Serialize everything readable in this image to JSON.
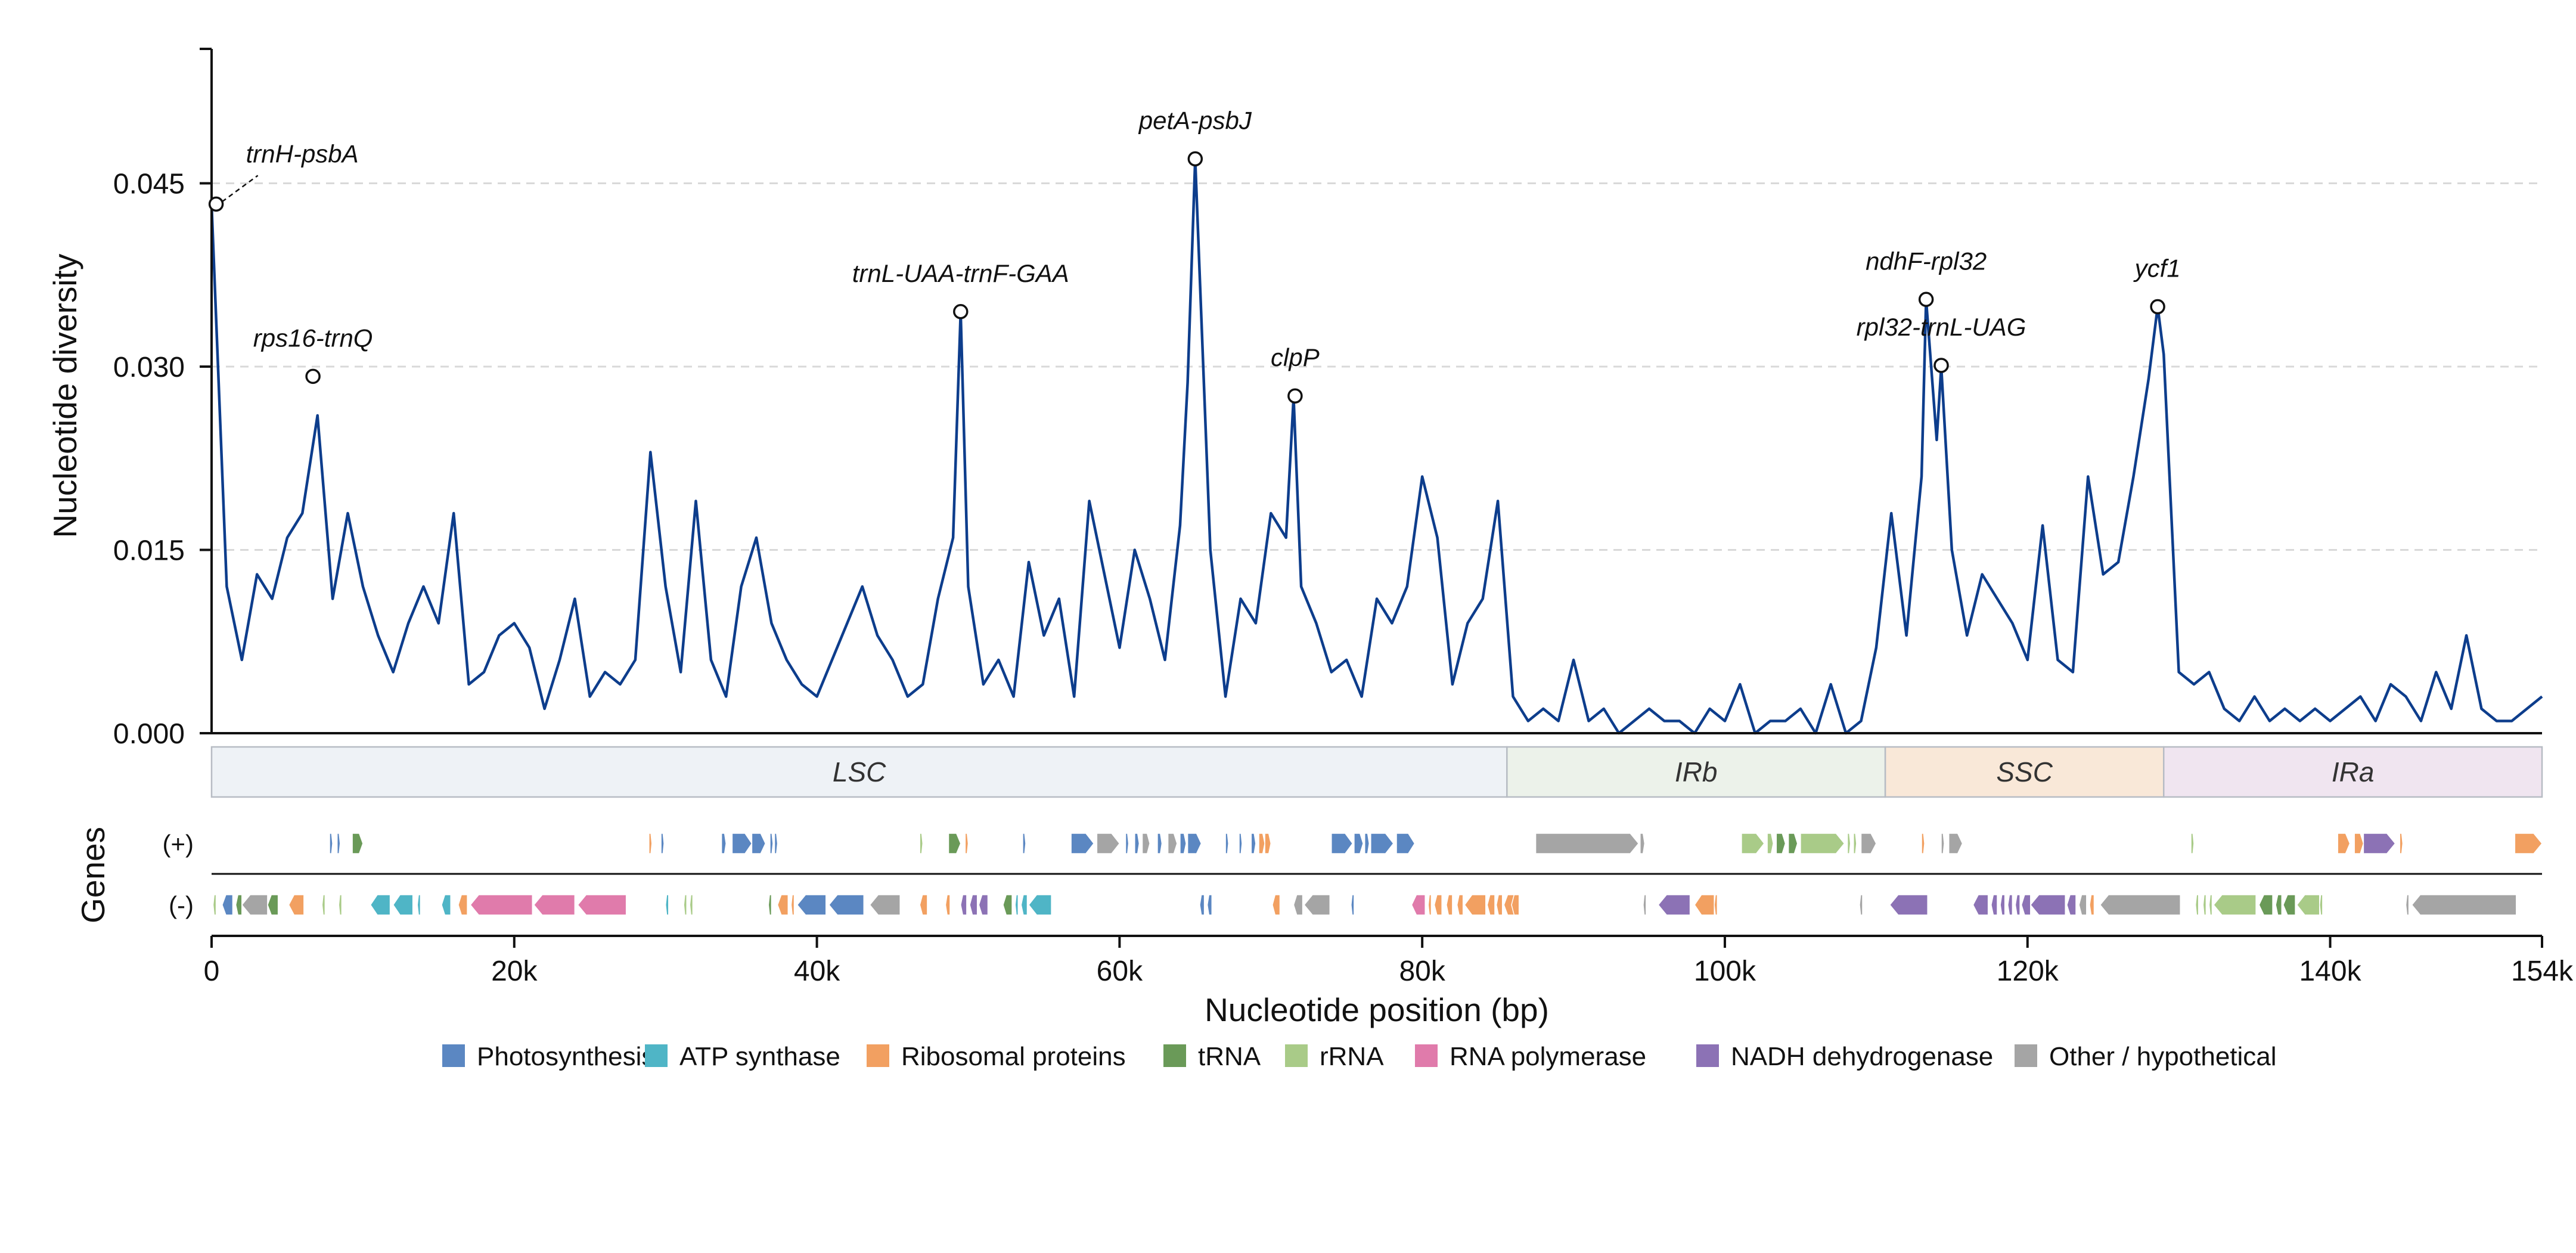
{
  "chart_data": {
    "type": "line",
    "xlabel": "Nucleotide position (bp)",
    "ylabel": "Nucleotide diversity",
    "xlim": [
      0,
      154000
    ],
    "ylim": [
      0,
      0.056
    ],
    "x_ticks": [
      0,
      20000,
      40000,
      60000,
      80000,
      100000,
      120000,
      140000,
      154000
    ],
    "x_tick_labels": [
      "0",
      "20k",
      "40k",
      "60k",
      "80k",
      "100k",
      "120k",
      "140k",
      "154k"
    ],
    "y_ticks": [
      0.0,
      0.015,
      0.03,
      0.045
    ],
    "y_tick_labels": [
      "0.000",
      "0.015",
      "0.030",
      "0.045"
    ],
    "grid": "horizontal dashed",
    "line_color": "#0d3d8c",
    "series": [
      {
        "x": [
          0,
          1000,
          2000,
          3000,
          4000,
          5000,
          6000,
          7000,
          8000,
          9000,
          10000,
          11000,
          12000,
          13000,
          14000,
          15000,
          16000,
          17000,
          18000,
          19000,
          20000,
          21000,
          22000,
          23000,
          24000,
          25000,
          26000,
          27000,
          28000,
          29000,
          30000,
          31000,
          32000,
          33000,
          34000,
          35000,
          36000,
          37000,
          38000,
          39000,
          40000,
          41000,
          42000,
          43000,
          44000,
          45000,
          46000,
          47000,
          48000,
          49000,
          49500,
          50000,
          51000,
          52000,
          53000,
          54000,
          55000,
          56000,
          57000,
          58000,
          59000,
          60000,
          61000,
          62000,
          63000,
          64000,
          64500,
          65000,
          66000,
          67000,
          68000,
          69000,
          70000,
          71000,
          71500,
          72000,
          73000,
          74000,
          75000,
          76000,
          77000,
          78000,
          79000,
          80000,
          81000,
          82000,
          83000,
          84000,
          85000,
          86000,
          87000,
          88000,
          89000,
          90000,
          91000,
          92000,
          93000,
          94000,
          95000,
          96000,
          97000,
          98000,
          99000,
          100000,
          101000,
          102000,
          103000,
          104000,
          105000,
          106000,
          107000,
          108000,
          109000,
          110000,
          111000,
          112000,
          113000,
          113300,
          114000,
          114300,
          115000,
          116000,
          117000,
          118000,
          119000,
          120000,
          121000,
          122000,
          123000,
          124000,
          125000,
          126000,
          127000,
          128000,
          128600,
          129000,
          130000,
          131000,
          132000,
          133000,
          134000,
          135000,
          136000,
          137000,
          138000,
          139000,
          140000,
          141000,
          142000,
          143000,
          144000,
          145000,
          146000,
          147000,
          148000,
          149000,
          150000,
          151000,
          152000,
          153000,
          154000
        ],
        "y": [
          0.0433,
          0.012,
          0.006,
          0.013,
          0.011,
          0.016,
          0.018,
          0.026,
          0.011,
          0.018,
          0.012,
          0.008,
          0.005,
          0.009,
          0.012,
          0.009,
          0.018,
          0.004,
          0.005,
          0.008,
          0.009,
          0.007,
          0.002,
          0.006,
          0.011,
          0.003,
          0.005,
          0.004,
          0.006,
          0.023,
          0.012,
          0.005,
          0.019,
          0.006,
          0.003,
          0.012,
          0.016,
          0.009,
          0.006,
          0.004,
          0.003,
          0.006,
          0.009,
          0.012,
          0.008,
          0.006,
          0.003,
          0.004,
          0.011,
          0.016,
          0.0345,
          0.012,
          0.004,
          0.006,
          0.003,
          0.014,
          0.008,
          0.011,
          0.003,
          0.019,
          0.013,
          0.007,
          0.015,
          0.011,
          0.006,
          0.017,
          0.0287,
          0.047,
          0.015,
          0.003,
          0.011,
          0.009,
          0.018,
          0.016,
          0.0275,
          0.012,
          0.009,
          0.005,
          0.006,
          0.003,
          0.011,
          0.009,
          0.012,
          0.021,
          0.016,
          0.004,
          0.009,
          0.011,
          0.019,
          0.003,
          0.001,
          0.002,
          0.001,
          0.006,
          0.001,
          0.002,
          0.0,
          0.001,
          0.002,
          0.001,
          0.001,
          0.0,
          0.002,
          0.001,
          0.004,
          0.0,
          0.001,
          0.001,
          0.002,
          0.0,
          0.004,
          0.0,
          0.001,
          0.007,
          0.018,
          0.008,
          0.021,
          0.0355,
          0.024,
          0.03,
          0.015,
          0.008,
          0.013,
          0.011,
          0.009,
          0.006,
          0.017,
          0.006,
          0.005,
          0.021,
          0.013,
          0.014,
          0.021,
          0.029,
          0.0349,
          0.031,
          0.005,
          0.004,
          0.005,
          0.002,
          0.001,
          0.003,
          0.001,
          0.002,
          0.001,
          0.002,
          0.001,
          0.002,
          0.003,
          0.001,
          0.004,
          0.003,
          0.001,
          0.005,
          0.002,
          0.008,
          0.002,
          0.001,
          0.001,
          0.002,
          0.003
        ]
      }
    ],
    "peaks": [
      {
        "label": "trnH-psbA",
        "x": 300,
        "y": 0.0433
      },
      {
        "label": "rps16-trnQ",
        "x": 6700,
        "y": 0.0292
      },
      {
        "label": "trnL-UAA-trnF-GAA",
        "x": 49500,
        "y": 0.0345
      },
      {
        "label": "petA-psbJ",
        "x": 65000,
        "y": 0.047
      },
      {
        "label": "clpP",
        "x": 71600,
        "y": 0.0276
      },
      {
        "label": "ndhF-rpl32",
        "x": 113300,
        "y": 0.0355
      },
      {
        "label": "rpl32-trnL-UAG",
        "x": 114300,
        "y": 0.0301
      },
      {
        "label": "ycf1",
        "x": 128600,
        "y": 0.0349
      }
    ],
    "regions": [
      {
        "label": "LSC",
        "start": 0,
        "end": 85600,
        "color": "#eef2f6"
      },
      {
        "label": "IRb",
        "start": 85600,
        "end": 110600,
        "color": "#ecf2ea"
      },
      {
        "label": "SSC",
        "start": 110600,
        "end": 129000,
        "color": "#f9e8d8"
      },
      {
        "label": "IRa",
        "start": 129000,
        "end": 154000,
        "color": "#f0e5f0"
      }
    ],
    "genes_track_label": "Genes",
    "strand_labels": [
      "(+)",
      "(-)"
    ],
    "categories": [
      {
        "name": "Photosynthesis",
        "color": "#5b87c2"
      },
      {
        "name": "ATP synthase",
        "color": "#4fb5c6"
      },
      {
        "name": "Ribosomal proteins",
        "color": "#f2a061"
      },
      {
        "name": "tRNA",
        "color": "#6a9a58"
      },
      {
        "name": "rRNA",
        "color": "#a9cb88"
      },
      {
        "name": "RNA polymerase",
        "color": "#e07bab"
      },
      {
        "name": "NADH dehydrogenase",
        "color": "#8c72b5"
      },
      {
        "name": "Other / hypothetical",
        "color": "#a5a5a5"
      }
    ],
    "genes_plus": [
      [
        7800,
        8000,
        0
      ],
      [
        8300,
        8500,
        0
      ],
      [
        9300,
        10000,
        3
      ],
      [
        28900,
        29100,
        2
      ],
      [
        29700,
        29900,
        0
      ],
      [
        33700,
        34000,
        0
      ],
      [
        34400,
        35700,
        0
      ],
      [
        35700,
        36600,
        0
      ],
      [
        36900,
        37100,
        0
      ],
      [
        37200,
        37400,
        0
      ],
      [
        46800,
        47000,
        4
      ],
      [
        48700,
        49500,
        3
      ],
      [
        49800,
        50000,
        2
      ],
      [
        53600,
        53800,
        0
      ],
      [
        56800,
        58300,
        0
      ],
      [
        58500,
        60000,
        7
      ],
      [
        60400,
        60600,
        0
      ],
      [
        61000,
        61300,
        0
      ],
      [
        61500,
        62000,
        7
      ],
      [
        62500,
        62800,
        0
      ],
      [
        63200,
        63800,
        7
      ],
      [
        64000,
        64400,
        0
      ],
      [
        64500,
        65400,
        0
      ],
      [
        67000,
        67200,
        0
      ],
      [
        67900,
        68100,
        0
      ],
      [
        68700,
        69000,
        0
      ],
      [
        69200,
        69600,
        2
      ],
      [
        69600,
        70000,
        2
      ],
      [
        74000,
        75400,
        0
      ],
      [
        75500,
        76100,
        0
      ],
      [
        76200,
        76500,
        0
      ],
      [
        76600,
        78100,
        0
      ],
      [
        78300,
        79500,
        0
      ],
      [
        87500,
        94300,
        7
      ],
      [
        94400,
        94700,
        7
      ],
      [
        101100,
        102600,
        4
      ],
      [
        102800,
        103200,
        4
      ],
      [
        103400,
        104000,
        3
      ],
      [
        104200,
        104800,
        3
      ],
      [
        105000,
        107900,
        4
      ],
      [
        108100,
        108300,
        4
      ],
      [
        108500,
        108700,
        4
      ],
      [
        109000,
        110000,
        7
      ],
      [
        113000,
        113200,
        2
      ],
      [
        114300,
        114500,
        7
      ],
      [
        114800,
        115700,
        7
      ],
      [
        130800,
        131000,
        4
      ],
      [
        140500,
        141300,
        2
      ],
      [
        141600,
        142200,
        2
      ],
      [
        142200,
        144300,
        6
      ],
      [
        144600,
        144800,
        2
      ],
      [
        152200,
        154000,
        2
      ]
    ],
    "genes_minus": [
      [
        100,
        300,
        4
      ],
      [
        700,
        1400,
        0
      ],
      [
        1600,
        2000,
        3
      ],
      [
        2000,
        3700,
        7
      ],
      [
        3700,
        4400,
        3
      ],
      [
        5100,
        6100,
        2
      ],
      [
        7300,
        7500,
        4
      ],
      [
        8400,
        8600,
        4
      ],
      [
        10500,
        11800,
        1
      ],
      [
        12000,
        13300,
        1
      ],
      [
        13600,
        13800,
        1
      ],
      [
        15200,
        15800,
        1
      ],
      [
        16300,
        16900,
        2
      ],
      [
        17100,
        21200,
        5
      ],
      [
        21300,
        24000,
        5
      ],
      [
        24200,
        27400,
        5
      ],
      [
        30000,
        30200,
        1
      ],
      [
        31200,
        31400,
        4
      ],
      [
        31600,
        31800,
        4
      ],
      [
        36800,
        37000,
        3
      ],
      [
        37400,
        38100,
        2
      ],
      [
        38300,
        38500,
        2
      ],
      [
        38700,
        40600,
        0
      ],
      [
        40800,
        43100,
        0
      ],
      [
        43500,
        45500,
        7
      ],
      [
        46800,
        47300,
        2
      ],
      [
        48500,
        48800,
        2
      ],
      [
        49500,
        49900,
        6
      ],
      [
        50100,
        50600,
        6
      ],
      [
        50700,
        51300,
        6
      ],
      [
        52300,
        52900,
        3
      ],
      [
        53100,
        53300,
        1
      ],
      [
        53500,
        53900,
        1
      ],
      [
        54000,
        55500,
        1
      ],
      [
        65300,
        65600,
        0
      ],
      [
        65800,
        66100,
        0
      ],
      [
        70100,
        70600,
        2
      ],
      [
        71500,
        72100,
        7
      ],
      [
        72200,
        73900,
        7
      ],
      [
        75300,
        75500,
        0
      ],
      [
        79300,
        80200,
        5
      ],
      [
        80400,
        80600,
        2
      ],
      [
        80800,
        81300,
        2
      ],
      [
        81600,
        82000,
        2
      ],
      [
        82300,
        82700,
        2
      ],
      [
        82800,
        84200,
        2
      ],
      [
        84300,
        84800,
        2
      ],
      [
        84900,
        85300,
        2
      ],
      [
        85400,
        86100,
        2
      ],
      [
        85900,
        86400,
        2
      ],
      [
        94600,
        94800,
        7
      ],
      [
        95600,
        97700,
        6
      ],
      [
        98000,
        99300,
        2
      ],
      [
        99300,
        99500,
        2
      ],
      [
        108900,
        109100,
        7
      ],
      [
        110900,
        113400,
        6
      ],
      [
        116400,
        117400,
        6
      ],
      [
        117600,
        118000,
        6
      ],
      [
        118200,
        118500,
        6
      ],
      [
        118700,
        119000,
        6
      ],
      [
        119200,
        119500,
        6
      ],
      [
        119600,
        120200,
        6
      ],
      [
        120200,
        122500,
        6
      ],
      [
        122600,
        123200,
        6
      ],
      [
        123400,
        123900,
        7
      ],
      [
        124100,
        124400,
        2
      ],
      [
        124800,
        130100,
        7
      ],
      [
        131100,
        131300,
        4
      ],
      [
        131600,
        131800,
        4
      ],
      [
        132000,
        132200,
        4
      ],
      [
        132300,
        135100,
        4
      ],
      [
        135300,
        136200,
        3
      ],
      [
        136400,
        136800,
        3
      ],
      [
        136900,
        137700,
        3
      ],
      [
        137800,
        139300,
        4
      ],
      [
        139300,
        139500,
        4
      ],
      [
        145000,
        145200,
        7
      ],
      [
        145400,
        152300,
        7
      ]
    ]
  }
}
